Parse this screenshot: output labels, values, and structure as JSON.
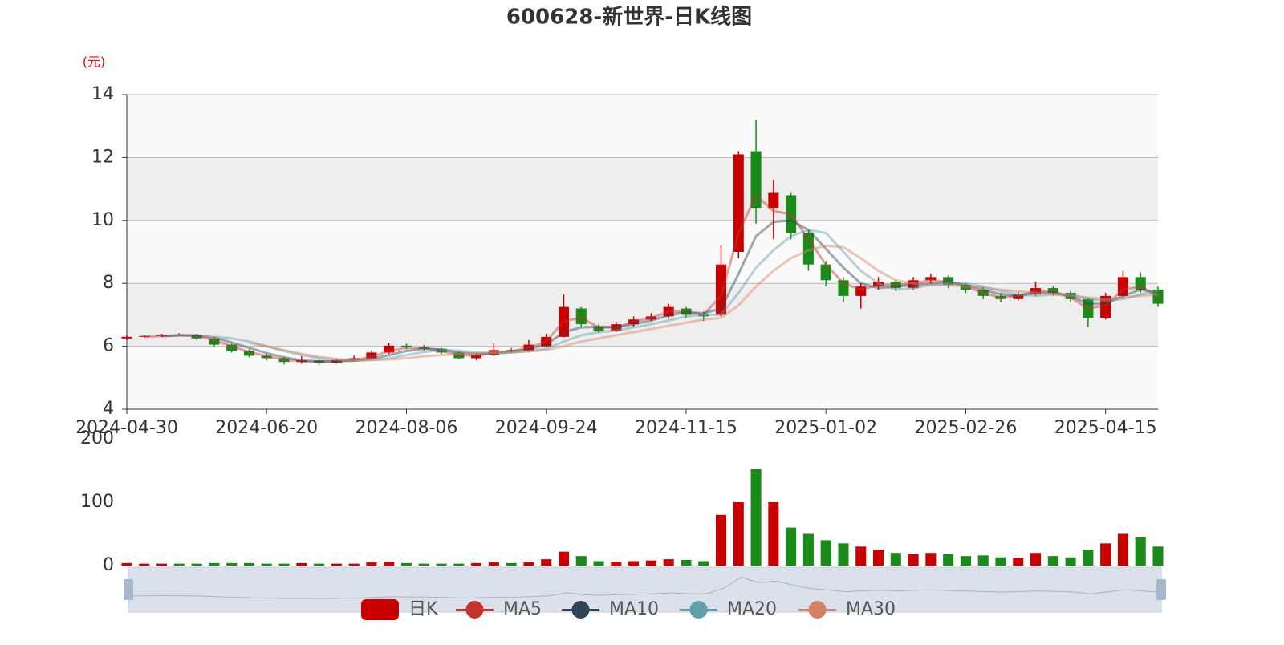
{
  "chart_data": {
    "type": "candlestick",
    "title": "600628-新世界-日K线图",
    "ylabel": "(元)",
    "up_color": "#c80000",
    "down_color": "#1a8a1a",
    "categories": [
      "2024-04-30",
      null,
      null,
      null,
      null,
      null,
      null,
      null,
      "2024-06-20",
      null,
      null,
      null,
      null,
      null,
      null,
      null,
      "2024-08-06",
      null,
      null,
      null,
      null,
      null,
      null,
      null,
      "2024-09-24",
      null,
      null,
      null,
      null,
      null,
      null,
      null,
      "2024-11-15",
      null,
      null,
      null,
      null,
      null,
      null,
      null,
      "2025-01-02",
      null,
      null,
      null,
      null,
      null,
      null,
      null,
      "2025-02-26",
      null,
      null,
      null,
      null,
      null,
      null,
      null,
      "2025-04-15",
      null,
      null,
      null
    ],
    "ylim": [
      4,
      14
    ],
    "yticks": [
      4,
      6,
      8,
      10,
      12,
      14
    ],
    "grid": true,
    "series": [
      {
        "name": "日K",
        "values": [
          [
            6.25,
            6.3,
            6.2,
            6.35
          ],
          [
            6.3,
            6.33,
            6.27,
            6.37
          ],
          [
            6.33,
            6.37,
            6.3,
            6.4
          ],
          [
            6.37,
            6.36,
            6.32,
            6.42
          ],
          [
            6.36,
            6.25,
            6.2,
            6.4
          ],
          [
            6.25,
            6.05,
            6.0,
            6.28
          ],
          [
            6.05,
            5.85,
            5.8,
            6.08
          ],
          [
            5.85,
            5.7,
            5.65,
            5.9
          ],
          [
            5.7,
            5.62,
            5.55,
            5.76
          ],
          [
            5.62,
            5.5,
            5.42,
            5.66
          ],
          [
            5.5,
            5.55,
            5.45,
            5.68
          ],
          [
            5.55,
            5.48,
            5.4,
            5.6
          ],
          [
            5.48,
            5.56,
            5.45,
            5.6
          ],
          [
            5.56,
            5.62,
            5.52,
            5.7
          ],
          [
            5.62,
            5.8,
            5.6,
            5.85
          ],
          [
            5.8,
            6.02,
            5.76,
            6.1
          ],
          [
            6.02,
            5.98,
            5.9,
            6.08
          ],
          [
            5.98,
            5.92,
            5.86,
            6.04
          ],
          [
            5.92,
            5.8,
            5.75,
            5.95
          ],
          [
            5.8,
            5.62,
            5.58,
            5.84
          ],
          [
            5.62,
            5.72,
            5.55,
            5.8
          ],
          [
            5.72,
            5.88,
            5.68,
            6.1
          ],
          [
            5.88,
            5.85,
            5.8,
            5.95
          ],
          [
            5.85,
            6.05,
            5.82,
            6.2
          ],
          [
            6.0,
            6.3,
            5.98,
            6.4
          ],
          [
            6.3,
            7.25,
            6.28,
            7.65
          ],
          [
            7.2,
            6.7,
            6.6,
            7.25
          ],
          [
            6.6,
            6.5,
            6.42,
            6.7
          ],
          [
            6.5,
            6.7,
            6.45,
            6.78
          ],
          [
            6.7,
            6.85,
            6.62,
            6.95
          ],
          [
            6.85,
            6.95,
            6.8,
            7.05
          ],
          [
            6.95,
            7.25,
            6.9,
            7.35
          ],
          [
            7.2,
            7.0,
            6.9,
            7.25
          ],
          [
            7.0,
            6.95,
            6.8,
            7.1
          ],
          [
            7.0,
            8.6,
            6.95,
            9.2
          ],
          [
            9.0,
            12.1,
            8.8,
            12.2
          ],
          [
            12.2,
            10.4,
            9.9,
            13.2
          ],
          [
            10.4,
            10.9,
            9.4,
            11.3
          ],
          [
            10.8,
            9.6,
            9.4,
            10.9
          ],
          [
            9.6,
            8.6,
            8.4,
            9.7
          ],
          [
            8.6,
            8.1,
            7.9,
            8.7
          ],
          [
            8.1,
            7.6,
            7.4,
            8.2
          ],
          [
            7.6,
            7.9,
            7.2,
            8.0
          ],
          [
            7.9,
            8.05,
            7.8,
            8.2
          ],
          [
            8.05,
            7.85,
            7.75,
            8.1
          ],
          [
            7.85,
            8.1,
            7.8,
            8.2
          ],
          [
            8.1,
            8.2,
            8.0,
            8.3
          ],
          [
            8.2,
            7.95,
            7.85,
            8.25
          ],
          [
            7.95,
            7.8,
            7.7,
            8.0
          ],
          [
            7.8,
            7.6,
            7.5,
            7.9
          ],
          [
            7.6,
            7.5,
            7.4,
            7.7
          ],
          [
            7.5,
            7.65,
            7.45,
            7.75
          ],
          [
            7.65,
            7.85,
            7.6,
            8.05
          ],
          [
            7.85,
            7.7,
            7.6,
            7.9
          ],
          [
            7.7,
            7.5,
            7.4,
            7.75
          ],
          [
            7.5,
            6.9,
            6.6,
            7.55
          ],
          [
            6.9,
            7.6,
            6.85,
            7.7
          ],
          [
            7.6,
            8.2,
            7.5,
            8.4
          ],
          [
            8.2,
            7.8,
            7.7,
            8.35
          ],
          [
            7.8,
            7.35,
            7.25,
            7.9
          ]
        ]
      },
      {
        "name": "MA5",
        "color": "#c23531",
        "values": [
          null,
          6.3,
          6.33,
          6.35,
          6.33,
          6.2,
          6.0,
          5.82,
          5.68,
          5.58,
          5.52,
          5.5,
          5.52,
          5.56,
          5.66,
          5.85,
          5.95,
          5.95,
          5.86,
          5.72,
          5.7,
          5.8,
          5.85,
          5.95,
          6.15,
          6.8,
          6.9,
          6.6,
          6.6,
          6.78,
          6.9,
          7.1,
          7.1,
          7.0,
          7.6,
          9.6,
          10.8,
          10.3,
          10.2,
          9.4,
          8.6,
          8.0,
          7.8,
          7.95,
          7.95,
          8.0,
          8.1,
          8.05,
          7.9,
          7.7,
          7.55,
          7.6,
          7.75,
          7.75,
          7.55,
          7.2,
          7.3,
          7.8,
          7.9,
          7.6
        ]
      },
      {
        "name": "MA10",
        "color": "#2f4554",
        "values": [
          null,
          null,
          6.32,
          6.35,
          6.35,
          6.28,
          6.12,
          5.95,
          5.78,
          5.65,
          5.55,
          5.52,
          5.52,
          5.54,
          5.6,
          5.72,
          5.85,
          5.92,
          5.9,
          5.8,
          5.75,
          5.77,
          5.82,
          5.9,
          6.05,
          6.45,
          6.6,
          6.62,
          6.6,
          6.7,
          6.82,
          6.98,
          7.08,
          7.05,
          7.2,
          8.3,
          9.5,
          9.95,
          10.0,
          9.7,
          9.1,
          8.5,
          8.0,
          7.85,
          7.9,
          7.95,
          8.0,
          8.05,
          7.95,
          7.8,
          7.65,
          7.6,
          7.7,
          7.7,
          7.6,
          7.35,
          7.35,
          7.6,
          7.8,
          7.7
        ]
      },
      {
        "name": "MA20",
        "color": "#61a0a8",
        "values": [
          null,
          null,
          null,
          null,
          null,
          6.3,
          6.25,
          6.15,
          6.0,
          5.85,
          5.72,
          5.62,
          5.56,
          5.54,
          5.56,
          5.62,
          5.72,
          5.82,
          5.88,
          5.86,
          5.8,
          5.78,
          5.8,
          5.84,
          5.92,
          6.15,
          6.35,
          6.45,
          6.5,
          6.6,
          6.7,
          6.82,
          6.95,
          7.0,
          7.0,
          7.7,
          8.5,
          9.05,
          9.5,
          9.7,
          9.6,
          9.0,
          8.4,
          8.0,
          7.8,
          7.85,
          7.95,
          8.0,
          8.0,
          7.9,
          7.75,
          7.65,
          7.6,
          7.65,
          7.65,
          7.5,
          7.45,
          7.5,
          7.65,
          7.75
        ]
      },
      {
        "name": "MA30",
        "color": "#d48265",
        "values": [
          null,
          null,
          null,
          null,
          null,
          null,
          null,
          6.1,
          6.0,
          5.88,
          5.76,
          5.66,
          5.6,
          5.56,
          5.56,
          5.58,
          5.62,
          5.68,
          5.72,
          5.76,
          5.78,
          5.8,
          5.82,
          5.84,
          5.88,
          6.0,
          6.15,
          6.25,
          6.35,
          6.45,
          6.55,
          6.65,
          6.75,
          6.85,
          6.9,
          7.3,
          7.9,
          8.4,
          8.8,
          9.05,
          9.2,
          9.15,
          8.8,
          8.4,
          8.1,
          8.0,
          7.95,
          7.95,
          7.9,
          7.85,
          7.8,
          7.75,
          7.7,
          7.65,
          7.6,
          7.55,
          7.5,
          7.55,
          7.6,
          7.65
        ]
      }
    ],
    "volume": {
      "ylim": [
        0,
        200
      ],
      "yticks": [
        0,
        100,
        200
      ],
      "values": [
        4,
        3,
        3,
        3,
        3,
        4,
        4,
        4,
        3,
        3,
        4,
        3,
        3,
        3,
        5,
        6,
        4,
        3,
        3,
        3,
        4,
        5,
        4,
        5,
        10,
        22,
        15,
        7,
        6,
        7,
        8,
        10,
        9,
        7,
        80,
        100,
        152,
        100,
        60,
        50,
        40,
        35,
        30,
        25,
        20,
        18,
        20,
        18,
        15,
        16,
        13,
        12,
        20,
        15,
        13,
        25,
        35,
        50,
        45,
        30
      ]
    }
  }
}
